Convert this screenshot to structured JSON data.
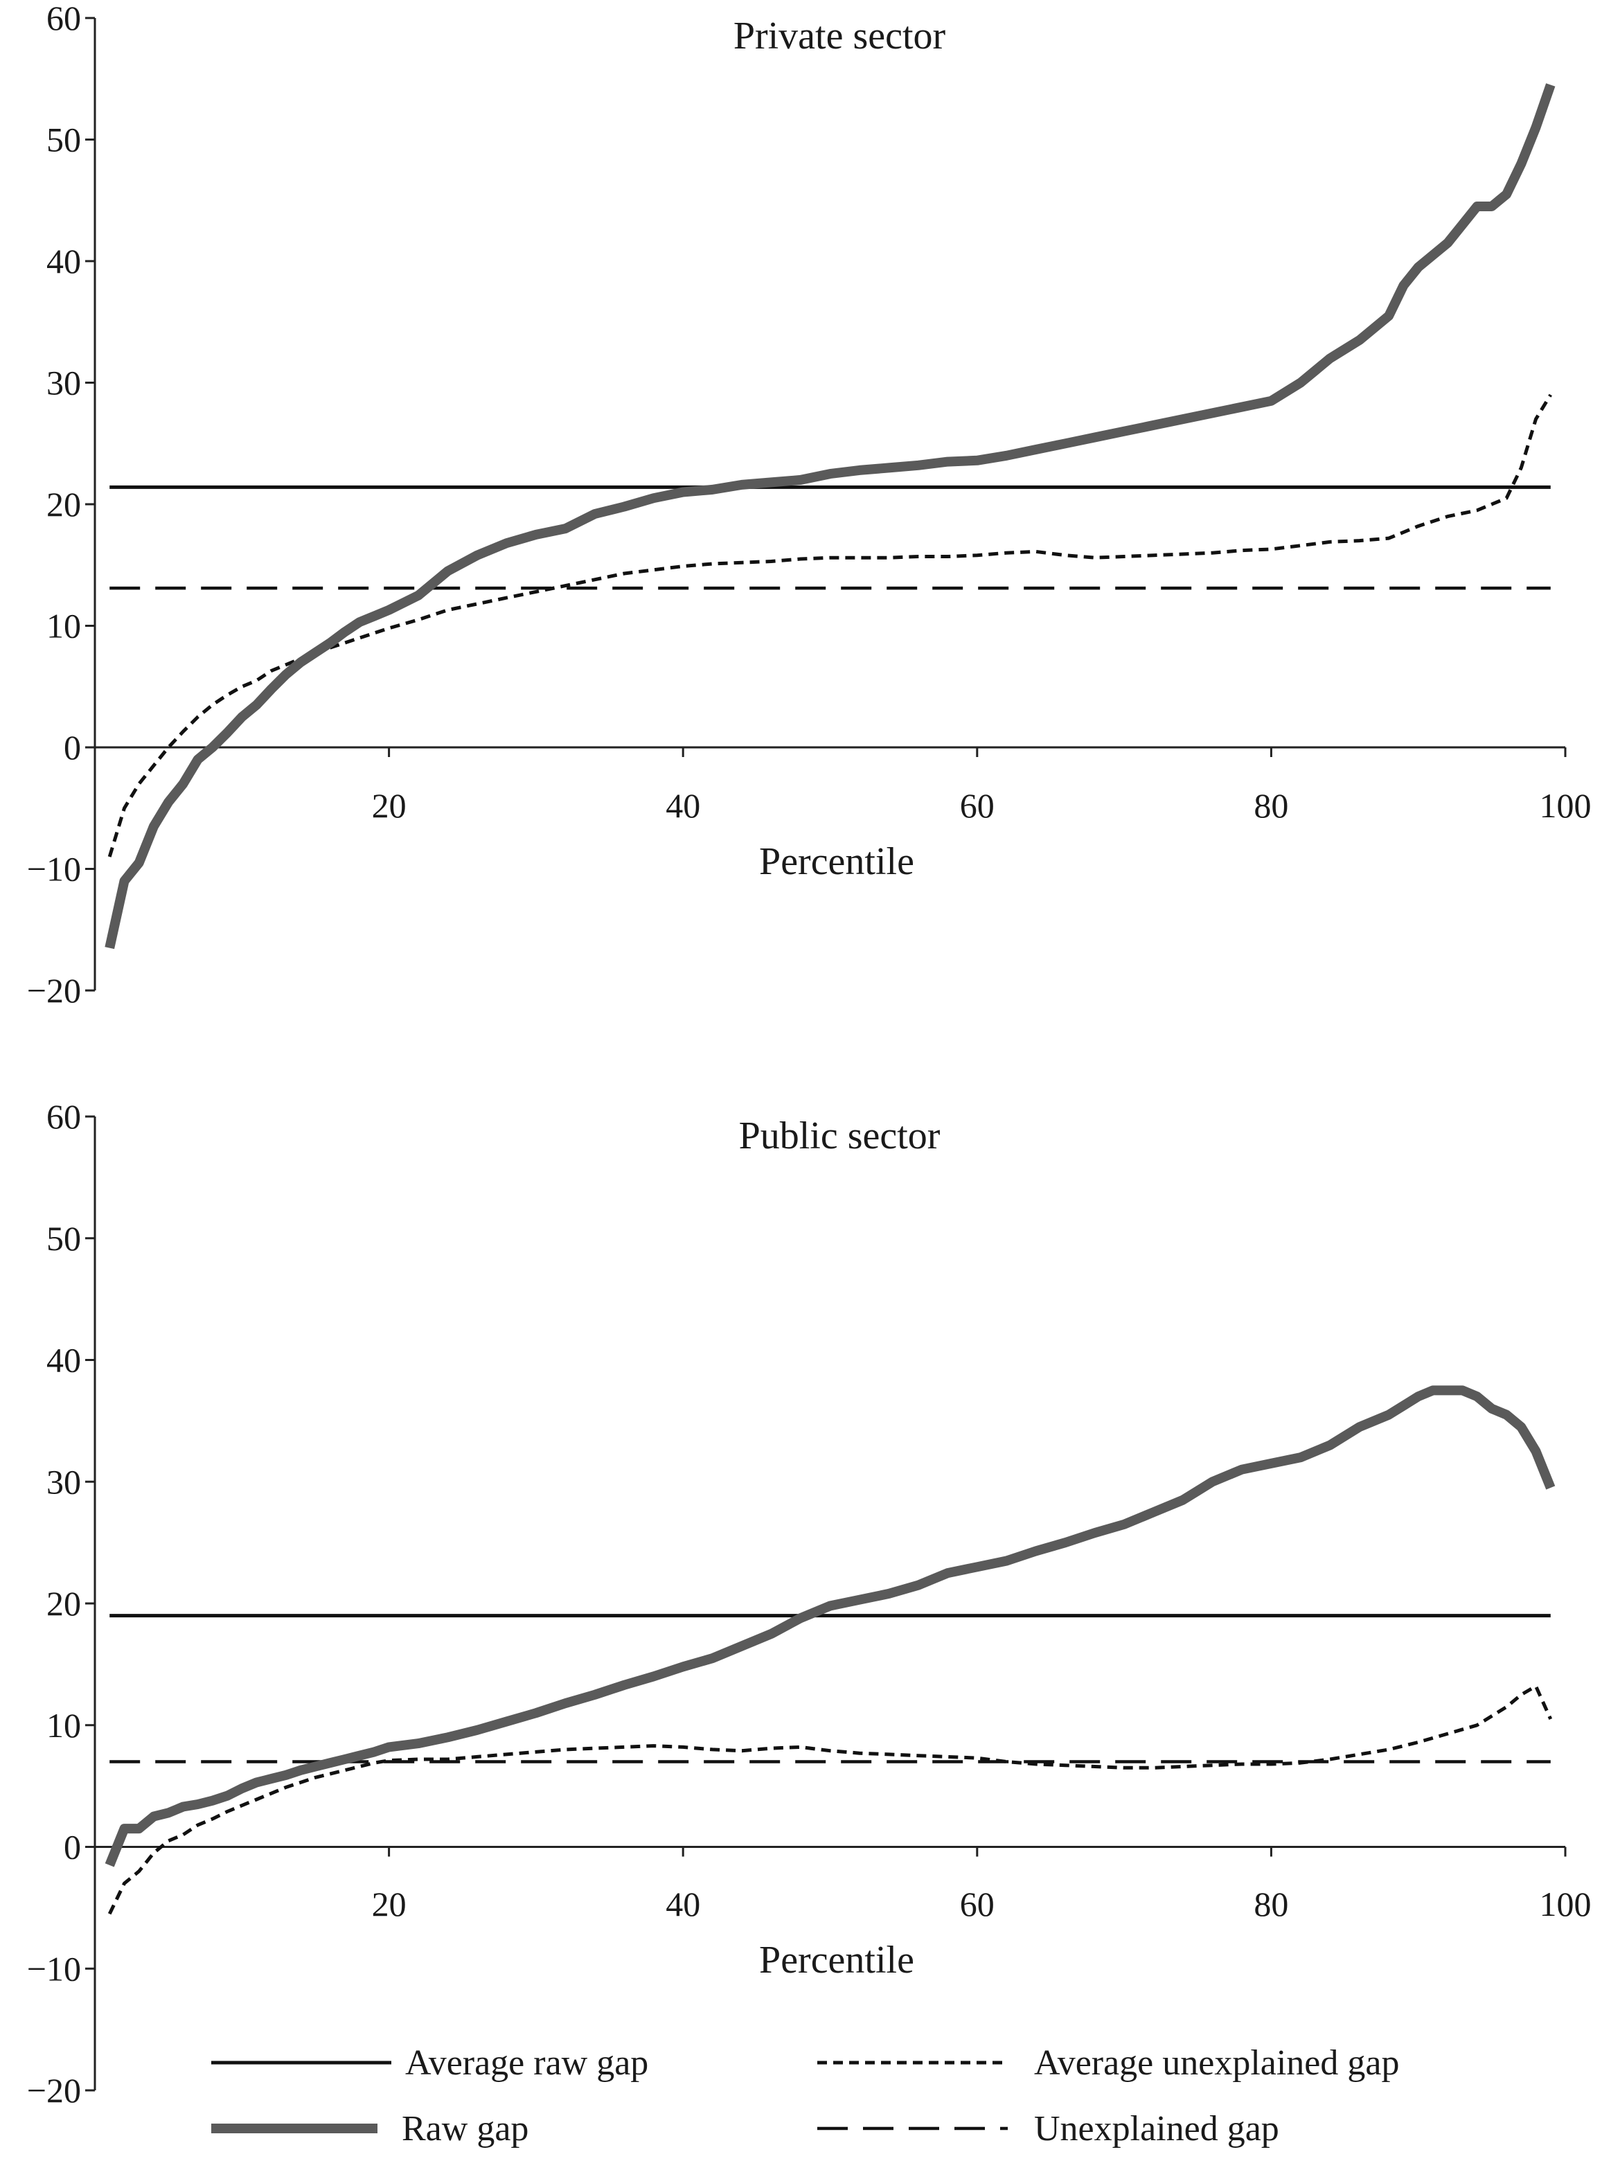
{
  "chart_data": [
    {
      "type": "line",
      "title": "Private sector",
      "xlabel": "Percentile",
      "ylabel": "",
      "xlim": [
        0,
        100
      ],
      "ylim": [
        -20,
        60
      ],
      "xticks": [
        20,
        40,
        60,
        80,
        100
      ],
      "yticks": [
        -20,
        -10,
        0,
        10,
        20,
        30,
        40,
        50,
        60
      ],
      "grid": false,
      "series": [
        {
          "name": "Raw gap",
          "style": "solid-thick-grey",
          "x": [
            1,
            2,
            3,
            4,
            5,
            6,
            7,
            8,
            9,
            10,
            11,
            12,
            13,
            14,
            15,
            16,
            17,
            18,
            19,
            20,
            22,
            24,
            26,
            28,
            30,
            32,
            34,
            36,
            38,
            40,
            42,
            44,
            46,
            48,
            50,
            52,
            54,
            56,
            58,
            60,
            62,
            64,
            66,
            68,
            70,
            72,
            74,
            76,
            78,
            80,
            82,
            84,
            86,
            88,
            89,
            90,
            91,
            92,
            93,
            94,
            95,
            96,
            97,
            98,
            99
          ],
          "values": [
            -16.5,
            -11,
            -9.5,
            -6.5,
            -4.5,
            -3,
            -1,
            0,
            1.2,
            2.5,
            3.5,
            4.8,
            6,
            7,
            7.8,
            8.6,
            9.5,
            10.3,
            10.8,
            11.3,
            12.5,
            14.5,
            15.8,
            16.8,
            17.5,
            18,
            19.2,
            19.8,
            20.5,
            21,
            21.2,
            21.6,
            21.8,
            22,
            22.5,
            22.8,
            23,
            23.2,
            23.5,
            23.6,
            24,
            24.5,
            25,
            25.5,
            26,
            26.5,
            27,
            27.5,
            28,
            28.5,
            30,
            32,
            33.5,
            35.5,
            38,
            39.5,
            40.5,
            41.5,
            43,
            44.5,
            44.5,
            45.5,
            48,
            51,
            54.5
          ]
        },
        {
          "name": "Average unexplained gap",
          "style": "short-dash",
          "x": [
            1,
            2,
            3,
            4,
            5,
            6,
            7,
            8,
            9,
            10,
            11,
            12,
            13,
            14,
            15,
            16,
            17,
            18,
            19,
            20,
            22,
            24,
            26,
            28,
            30,
            32,
            34,
            36,
            38,
            40,
            42,
            44,
            46,
            48,
            50,
            52,
            54,
            56,
            58,
            60,
            62,
            64,
            66,
            68,
            70,
            72,
            74,
            76,
            78,
            80,
            82,
            84,
            86,
            88,
            90,
            92,
            94,
            96,
            97,
            98,
            99
          ],
          "values": [
            -9,
            -5,
            -3,
            -1.5,
            0,
            1.3,
            2.5,
            3.5,
            4.3,
            5,
            5.5,
            6.3,
            6.8,
            7.3,
            7.8,
            8.2,
            8.6,
            9,
            9.4,
            9.8,
            10.5,
            11.3,
            11.8,
            12.3,
            12.8,
            13.3,
            13.8,
            14.3,
            14.6,
            14.9,
            15.1,
            15.2,
            15.3,
            15.5,
            15.6,
            15.6,
            15.6,
            15.7,
            15.7,
            15.8,
            16,
            16.1,
            15.8,
            15.6,
            15.7,
            15.8,
            15.9,
            16,
            16.2,
            16.3,
            16.6,
            16.9,
            17,
            17.2,
            18.2,
            19,
            19.5,
            20.5,
            23,
            27,
            29
          ]
        },
        {
          "name": "Average raw gap",
          "style": "solid-thin-black",
          "x": [
            1,
            99
          ],
          "values": [
            21.4,
            21.4
          ]
        },
        {
          "name": "Unexplained gap",
          "style": "long-dash",
          "x": [
            1,
            99
          ],
          "values": [
            13.1,
            13.1
          ]
        }
      ]
    },
    {
      "type": "line",
      "title": "Public sector",
      "xlabel": "Percentile",
      "ylabel": "",
      "xlim": [
        0,
        100
      ],
      "ylim": [
        -20,
        60
      ],
      "xticks": [
        20,
        40,
        60,
        80,
        100
      ],
      "yticks": [
        -20,
        -10,
        0,
        10,
        20,
        30,
        40,
        50,
        60
      ],
      "grid": false,
      "series": [
        {
          "name": "Raw gap",
          "style": "solid-thick-grey",
          "x": [
            1,
            2,
            3,
            4,
            5,
            6,
            7,
            8,
            9,
            10,
            11,
            12,
            13,
            14,
            15,
            16,
            17,
            18,
            19,
            20,
            22,
            24,
            26,
            28,
            30,
            32,
            34,
            36,
            38,
            40,
            42,
            44,
            46,
            48,
            50,
            52,
            54,
            56,
            58,
            60,
            62,
            64,
            66,
            68,
            70,
            72,
            74,
            76,
            78,
            80,
            82,
            84,
            86,
            88,
            90,
            91,
            92,
            93,
            94,
            95,
            96,
            97,
            98,
            99
          ],
          "values": [
            -1.5,
            1.5,
            1.5,
            2.5,
            2.8,
            3.3,
            3.5,
            3.8,
            4.2,
            4.8,
            5.3,
            5.6,
            5.9,
            6.3,
            6.6,
            6.9,
            7.2,
            7.5,
            7.8,
            8.2,
            8.5,
            9,
            9.6,
            10.3,
            11,
            11.8,
            12.5,
            13.3,
            14,
            14.8,
            15.5,
            16.5,
            17.5,
            18.8,
            19.8,
            20.3,
            20.8,
            21.5,
            22.5,
            23,
            23.5,
            24.3,
            25,
            25.8,
            26.5,
            27.5,
            28.5,
            30,
            31,
            31.5,
            32,
            33,
            34.5,
            35.5,
            37,
            37.5,
            37.5,
            37.5,
            37,
            36,
            35.5,
            34.5,
            32.5,
            29.5
          ]
        },
        {
          "name": "Average unexplained gap",
          "style": "short-dash",
          "x": [
            1,
            2,
            3,
            4,
            5,
            6,
            7,
            8,
            9,
            10,
            11,
            12,
            13,
            14,
            15,
            16,
            17,
            18,
            19,
            20,
            22,
            24,
            26,
            28,
            30,
            32,
            34,
            36,
            38,
            40,
            42,
            44,
            46,
            48,
            50,
            52,
            54,
            56,
            58,
            60,
            62,
            64,
            66,
            68,
            70,
            72,
            74,
            76,
            78,
            80,
            82,
            84,
            86,
            88,
            90,
            92,
            94,
            96,
            97,
            98,
            99
          ],
          "values": [
            -5.5,
            -3,
            -2,
            -0.5,
            0.5,
            1,
            1.8,
            2.3,
            2.9,
            3.4,
            3.9,
            4.4,
            4.9,
            5.3,
            5.7,
            6,
            6.3,
            6.6,
            6.9,
            7.1,
            7.2,
            7.2,
            7.4,
            7.6,
            7.8,
            8,
            8.1,
            8.2,
            8.3,
            8.2,
            8,
            7.9,
            8.1,
            8.2,
            7.9,
            7.7,
            7.6,
            7.5,
            7.4,
            7.3,
            7,
            6.8,
            6.7,
            6.6,
            6.5,
            6.5,
            6.6,
            6.7,
            6.8,
            6.8,
            6.9,
            7.2,
            7.6,
            8,
            8.6,
            9.3,
            10,
            11.5,
            12.5,
            13.2,
            10.5
          ]
        },
        {
          "name": "Average raw gap",
          "style": "solid-thin-black",
          "x": [
            1,
            99
          ],
          "values": [
            19.0,
            19.0
          ]
        },
        {
          "name": "Unexplained gap",
          "style": "long-dash",
          "x": [
            1,
            99
          ],
          "values": [
            7.0,
            7.0
          ]
        }
      ]
    }
  ],
  "legend": {
    "placement": "bottom",
    "items": [
      {
        "label": "Average raw gap",
        "style": "solid-thin-black"
      },
      {
        "label": "Average unexplained gap",
        "style": "short-dash"
      },
      {
        "label": "Raw gap",
        "style": "solid-thick-grey"
      },
      {
        "label": "Unexplained gap",
        "style": "long-dash"
      }
    ]
  },
  "colors": {
    "raw_gap": "#5a5a5a",
    "lines": "#111111",
    "axis": "#222222"
  }
}
